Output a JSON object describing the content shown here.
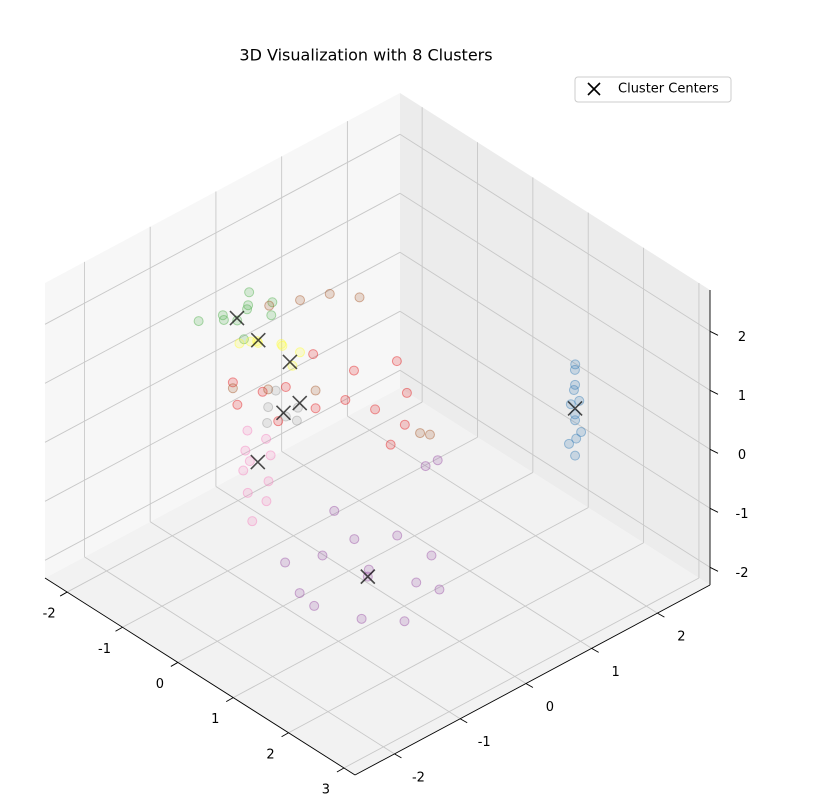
{
  "chart_data": {
    "type": "scatter",
    "title": "3D Visualization with 8 Clusters",
    "xlim": [
      -2.4,
      3.2
    ],
    "ylim": [
      -2.6,
      2.8
    ],
    "zlim": [
      -2.3,
      2.7
    ],
    "xticks": [
      -2,
      -1,
      0,
      1,
      2,
      3
    ],
    "yticks": [
      -2,
      -1,
      0,
      1,
      2
    ],
    "zticks": [
      -2,
      -1,
      0,
      1,
      2
    ],
    "grid": true,
    "legend": "upper right",
    "series": [
      {
        "color": "#e41a1c",
        "x": [
          -1.5,
          -1.2,
          -0.9,
          -0.6,
          -0.3,
          0.0,
          0.3,
          -1.0,
          -0.5,
          0.1,
          -0.8,
          -0.2,
          0.4,
          -1.3
        ],
        "y": [
          -0.5,
          -0.3,
          -0.2,
          0.0,
          0.2,
          0.4,
          0.6,
          0.3,
          0.5,
          0.8,
          -0.4,
          0.9,
          0.3,
          -0.6
        ],
        "z": [
          0.3,
          0.2,
          0.4,
          0.1,
          0.3,
          0.2,
          0.0,
          0.6,
          0.5,
          0.3,
          0.0,
          0.6,
          -0.1,
          0.1
        ]
      },
      {
        "color": "#377eb8",
        "x": [
          1.0,
          0.95,
          1.05,
          1.0,
          0.9,
          1.1,
          1.0,
          0.95,
          1.05,
          1.0,
          0.98,
          1.02
        ],
        "y": [
          2.6,
          2.55,
          2.65,
          2.6,
          2.62,
          2.58,
          2.6,
          2.64,
          2.56,
          2.6,
          2.6,
          2.6
        ],
        "z": [
          -1.3,
          -1.1,
          -0.9,
          -0.7,
          -0.5,
          -0.3,
          -0.1,
          0.1,
          0.3,
          -0.6,
          -0.2,
          -1.0
        ]
      },
      {
        "color": "#4daf4a",
        "x": [
          -2.0,
          -1.8,
          -1.6,
          -1.4,
          -1.9,
          -1.7,
          -1.5,
          -1.3,
          -1.6,
          -1.8
        ],
        "y": [
          -0.6,
          -0.4,
          -0.2,
          0.0,
          -0.3,
          -0.1,
          0.1,
          -0.5,
          -0.35,
          0.0
        ],
        "z": [
          1.1,
          1.2,
          1.3,
          1.2,
          1.0,
          1.25,
          1.3,
          1.15,
          1.2,
          1.35
        ]
      },
      {
        "color": "#984ea3",
        "x": [
          -0.2,
          0.3,
          0.8,
          1.3,
          1.6,
          0.1,
          0.6,
          1.1,
          0.4,
          0.9,
          1.4,
          0.0,
          -0.5,
          0.7,
          0.2,
          0.3
        ],
        "y": [
          -0.8,
          -1.0,
          -1.2,
          -0.9,
          -0.5,
          0.0,
          -0.2,
          0.1,
          0.4,
          0.5,
          0.2,
          -0.4,
          0.2,
          -0.3,
          1.0,
          1.1
        ],
        "z": [
          -1.8,
          -1.9,
          -1.7,
          -1.8,
          -1.9,
          -1.7,
          -1.8,
          -1.9,
          -1.7,
          -1.8,
          -1.9,
          -1.8,
          -1.7,
          -1.8,
          -1.0,
          -0.9
        ]
      },
      {
        "color": "#ffff33",
        "x": [
          -1.5,
          -1.3,
          -1.1,
          -1.4,
          -1.2,
          -1.0,
          -0.9,
          -1.3
        ],
        "y": [
          -0.4,
          -0.3,
          -0.1,
          -0.2,
          0.0,
          0.1,
          -0.1,
          -0.4
        ],
        "z": [
          0.9,
          1.0,
          0.95,
          0.85,
          0.8,
          0.75,
          0.7,
          1.05
        ]
      },
      {
        "color": "#a65628",
        "x": [
          -0.94,
          -0.7,
          -0.4,
          -1.2,
          0.16,
          0.1,
          -1.5,
          -1.1,
          -0.6
        ],
        "y": [
          0.05,
          0.3,
          0.5,
          -0.2,
          1.1,
          1.0,
          -0.5,
          -0.3,
          0.0
        ],
        "z": [
          1.7,
          1.8,
          1.8,
          1.6,
          -0.55,
          -0.5,
          0.2,
          0.3,
          0.4
        ]
      },
      {
        "color": "#f781bf",
        "x": [
          -1.0,
          -0.8,
          -0.6,
          -0.4,
          -0.7,
          -0.5,
          -0.3,
          -0.6,
          -0.2,
          -0.9
        ],
        "y": [
          -0.7,
          -0.9,
          -1.1,
          -1.2,
          -0.6,
          -0.8,
          -1.0,
          -1.0,
          -1.3,
          -0.5
        ],
        "z": [
          -0.1,
          -0.2,
          -0.3,
          -0.5,
          -0.4,
          -0.6,
          -0.7,
          -0.2,
          -0.8,
          -0.3
        ]
      },
      {
        "color": "#999999",
        "x": [
          -1.1,
          -0.9,
          -0.8,
          -1.0,
          -0.7,
          -1.2
        ],
        "y": [
          -0.3,
          -0.2,
          -0.1,
          -0.4,
          -0.2,
          -0.1
        ],
        "z": [
          0.0,
          -0.1,
          0.05,
          -0.15,
          -0.05,
          0.1
        ]
      }
    ],
    "centers": {
      "name": "Cluster Centers",
      "color": "#000000",
      "marker": "x",
      "x": [
        -0.72,
        1.0,
        -1.64,
        0.7,
        -1.35,
        -0.98,
        -0.61,
        -0.93
      ],
      "y": [
        -0.14,
        2.6,
        -0.32,
        -0.3,
        -0.24,
        -0.07,
        -0.87,
        -0.21
      ],
      "z": [
        0.2,
        -0.5,
        1.2,
        -1.8,
        0.95,
        0.7,
        -0.3,
        -0.05
      ]
    }
  }
}
